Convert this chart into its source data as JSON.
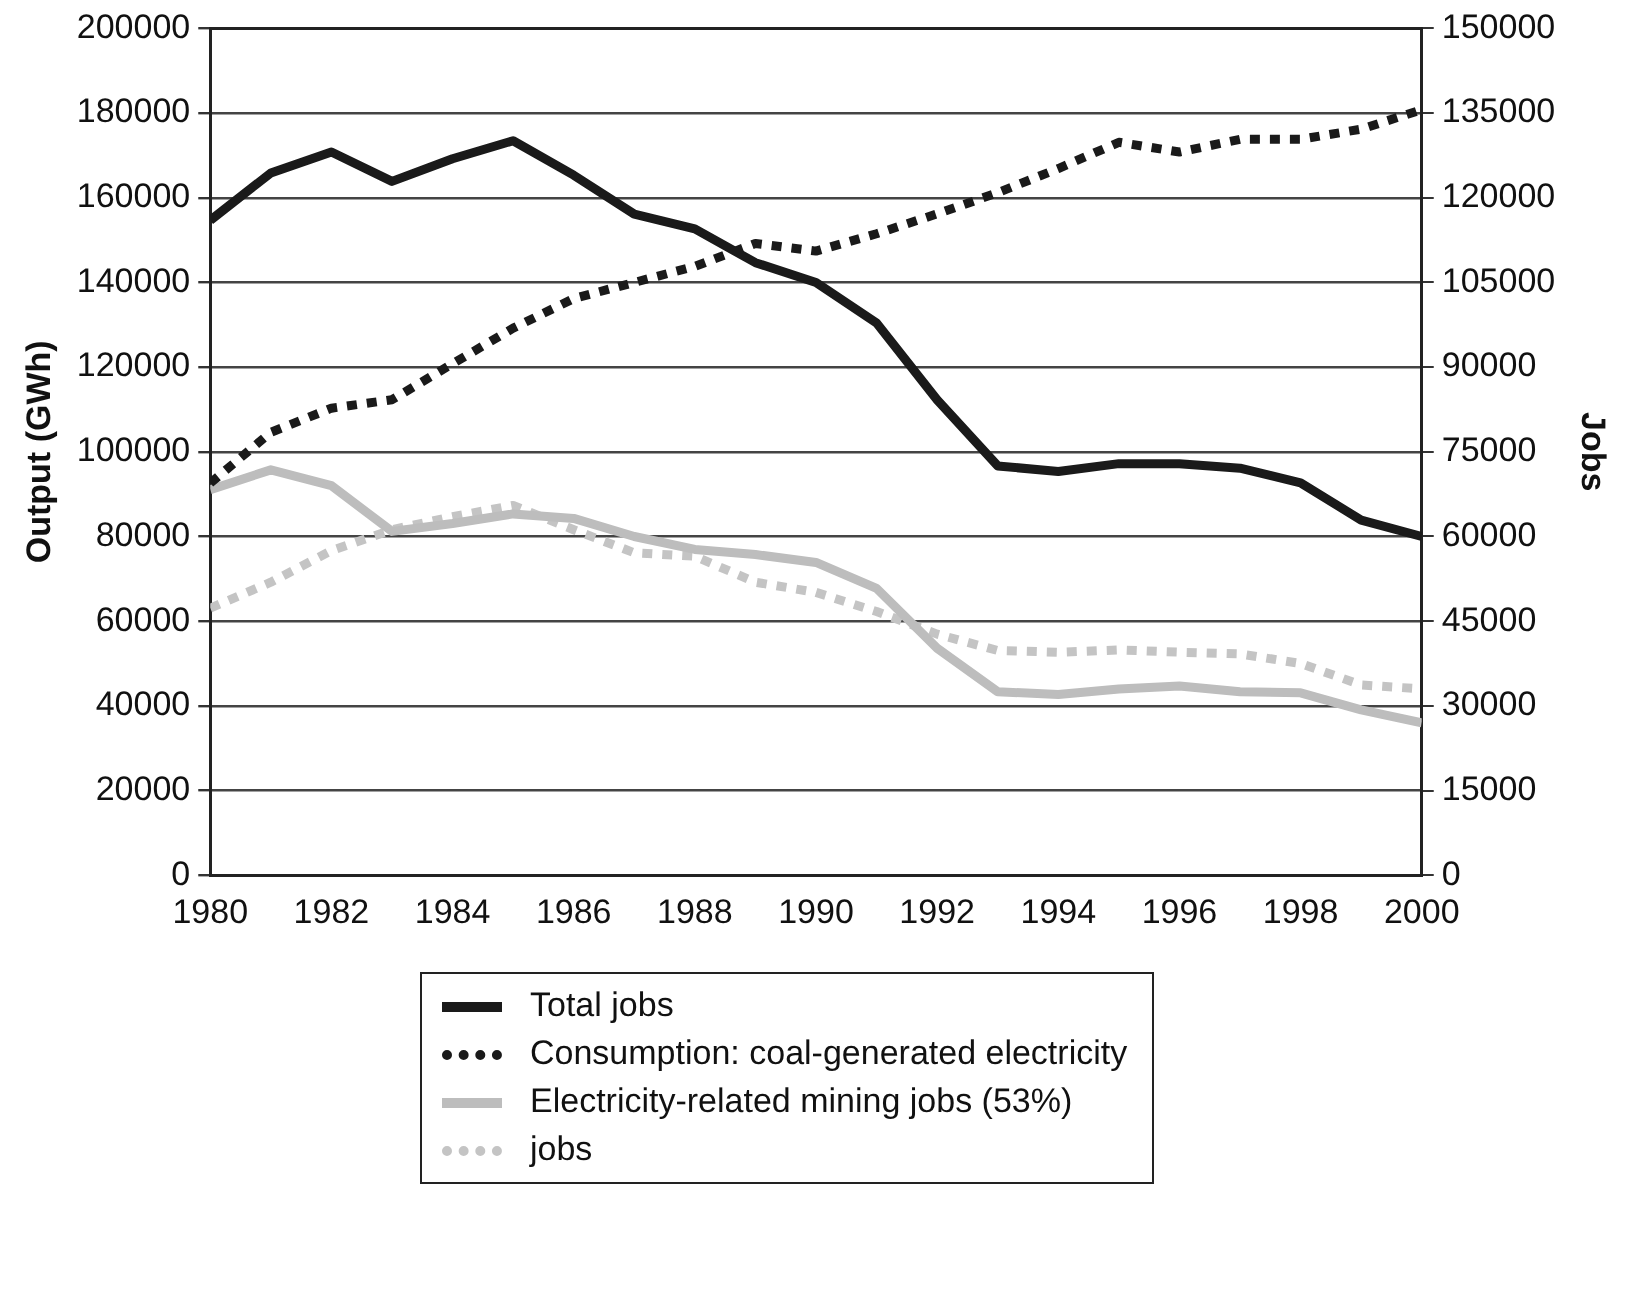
{
  "chart_data": {
    "type": "line",
    "ylabel": "Output (GWh)",
    "y2label": "Jobs",
    "x": [
      1980,
      1981,
      1982,
      1983,
      1984,
      1985,
      1986,
      1987,
      1988,
      1989,
      1990,
      1991,
      1992,
      1993,
      1994,
      1995,
      1996,
      1997,
      1998,
      1999,
      2000
    ],
    "xlim": [
      1980,
      2000
    ],
    "xticks": [
      1980,
      1982,
      1984,
      1986,
      1988,
      1990,
      1992,
      1994,
      1996,
      1998,
      2000
    ],
    "ylim": [
      0,
      200000
    ],
    "yticks": [
      0,
      20000,
      40000,
      60000,
      80000,
      100000,
      120000,
      140000,
      160000,
      180000,
      200000
    ],
    "y2lim": [
      0,
      150000
    ],
    "y2ticks": [
      0,
      15000,
      30000,
      45000,
      60000,
      75000,
      90000,
      105000,
      120000,
      135000,
      150000
    ],
    "grid": "y",
    "legend": "bottom",
    "marker": "none",
    "series": [
      {
        "name": "Total jobs",
        "color": "#1a1a1a",
        "axis": "y2",
        "line_style": "solid",
        "values": [
          116000,
          124400,
          128100,
          122900,
          126900,
          130100,
          124000,
          117100,
          114500,
          108500,
          105000,
          97800,
          84200,
          72500,
          71500,
          72900,
          72900,
          72100,
          69500,
          62900,
          60000
        ]
      },
      {
        "name": "Consumption: coal-generated electricity",
        "color": "#1a1a1a",
        "axis": "y",
        "line_style": "dotted",
        "values": [
          92600,
          104600,
          110300,
          112300,
          120800,
          129200,
          136200,
          140000,
          143800,
          149200,
          147400,
          151500,
          156200,
          161200,
          166900,
          173100,
          170800,
          173800,
          173800,
          176200,
          180800
        ]
      },
      {
        "name": "Electricity-related mining jobs (53%)",
        "color": "#bdbdbd",
        "axis": "y2",
        "line_style": "solid",
        "values": [
          68300,
          71800,
          69000,
          60900,
          62300,
          64000,
          63200,
          60000,
          57700,
          56800,
          55400,
          50800,
          40200,
          32500,
          32000,
          33000,
          33500,
          32500,
          32300,
          29300,
          27000
        ]
      },
      {
        "name": "jobs",
        "color": "#c4c4c4",
        "axis": "y2",
        "line_style": "dotted",
        "values": [
          47300,
          51900,
          57500,
          61200,
          63500,
          65500,
          61200,
          57100,
          56500,
          51900,
          50100,
          46700,
          42700,
          39800,
          39500,
          39900,
          39500,
          39200,
          37500,
          33700,
          33000
        ]
      }
    ]
  }
}
